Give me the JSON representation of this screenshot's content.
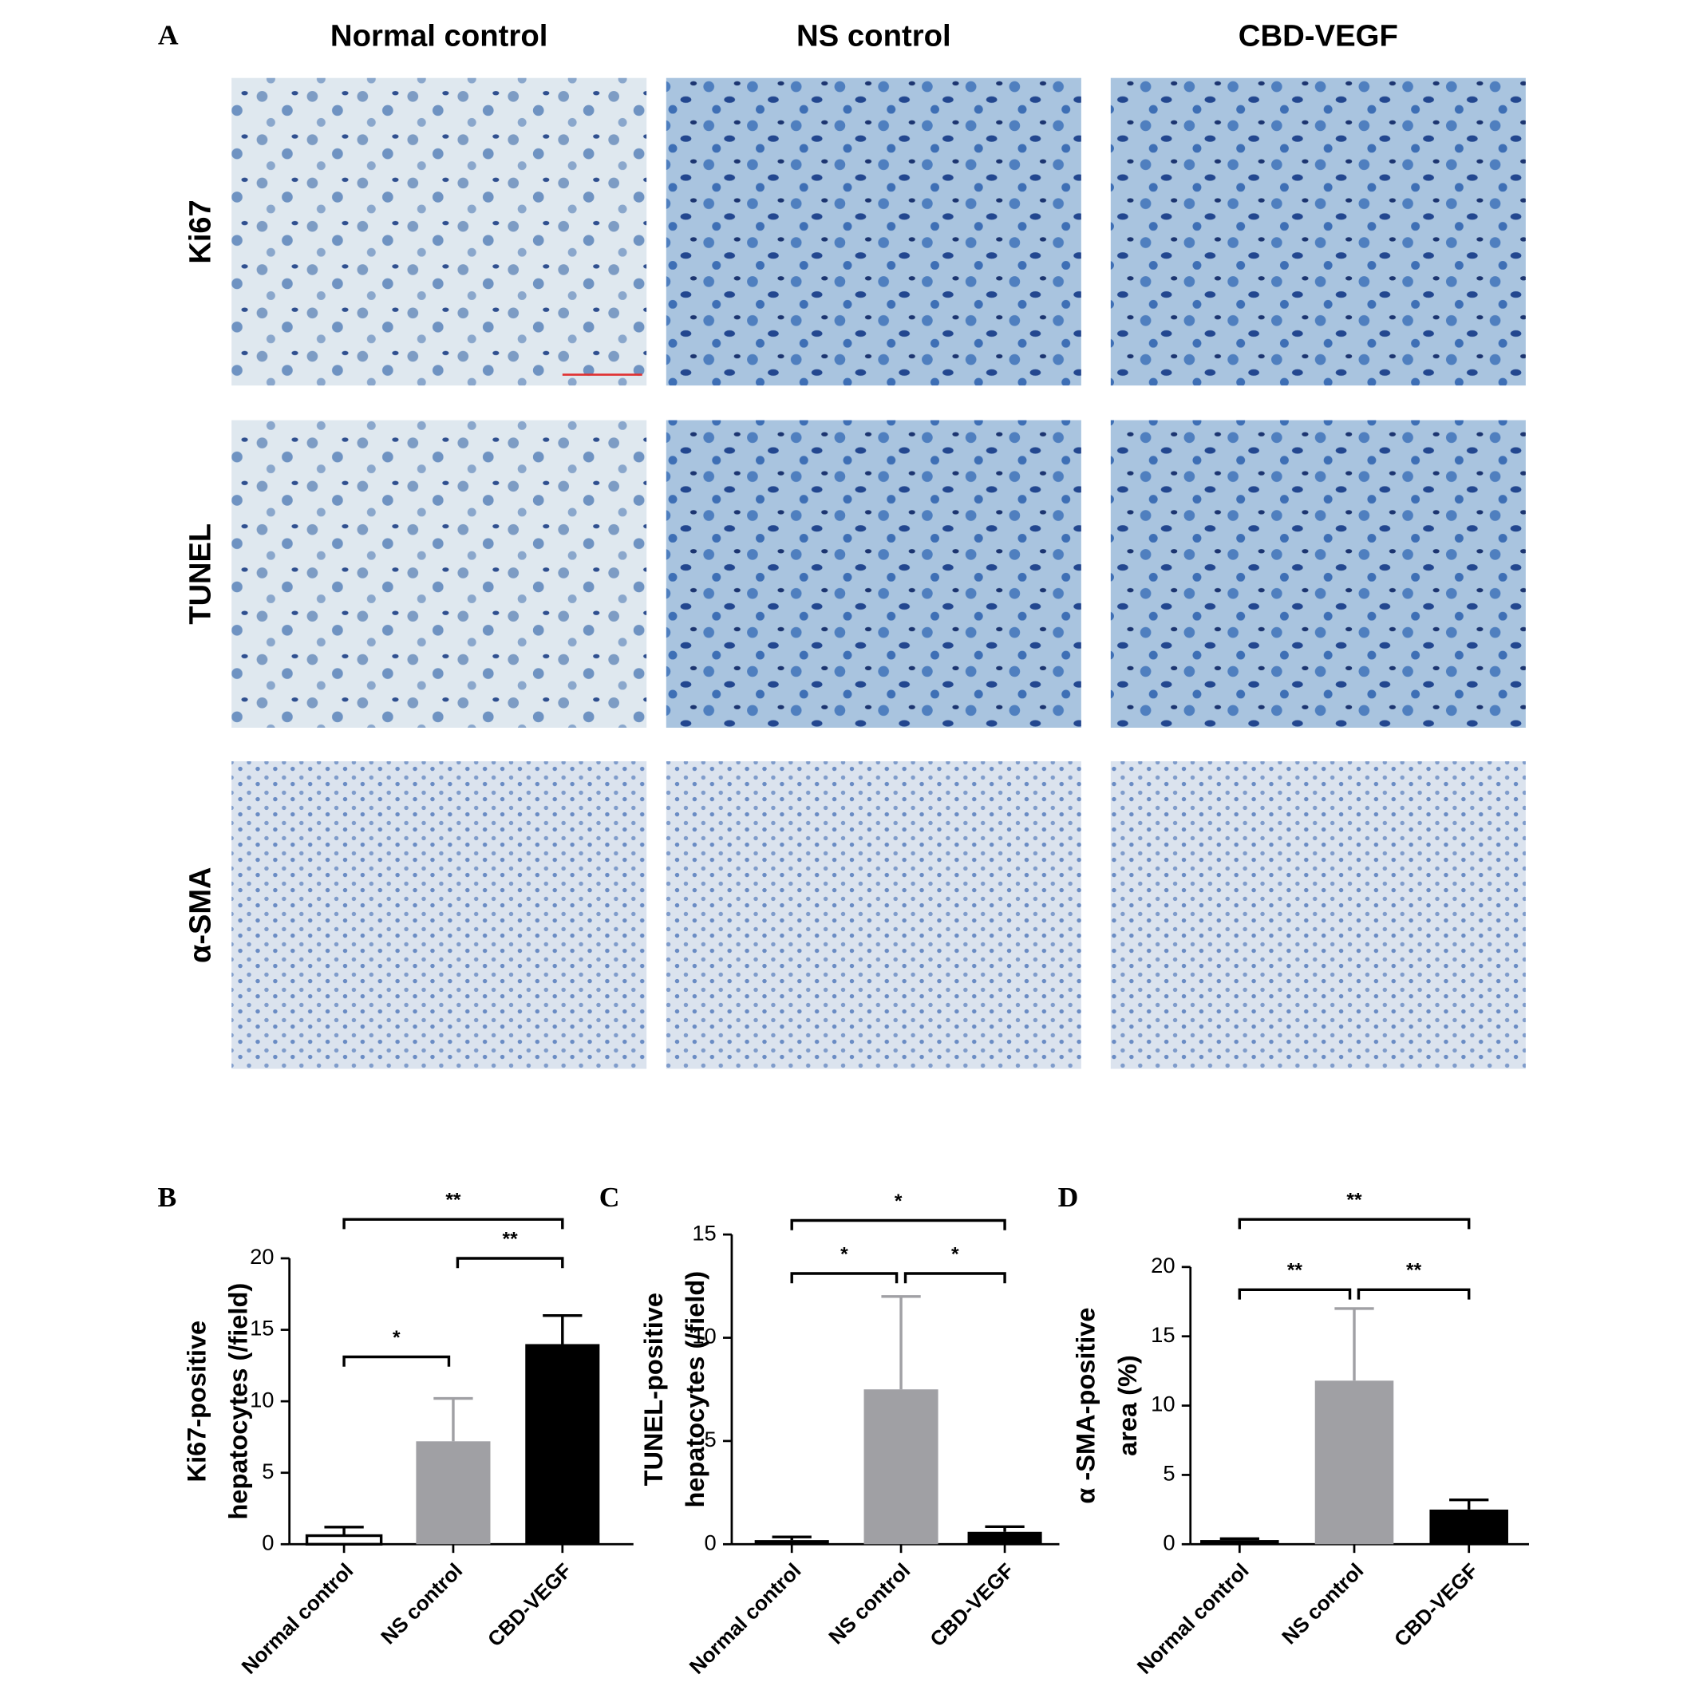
{
  "panel_a": {
    "label": "A",
    "columns": [
      "Normal control",
      "NS control",
      "CBD-VEGF"
    ],
    "rows": [
      "Ki67",
      "TUNEL",
      "α-SMA"
    ]
  },
  "chart_data": [
    {
      "type": "bar",
      "panel": "B",
      "ylabel": [
        "Ki67-positive",
        "hepatocytes (/field)"
      ],
      "categories": [
        "Normal control",
        "NS control",
        "CBD-VEGF"
      ],
      "values": [
        0.6,
        7.2,
        14
      ],
      "errors": [
        0.6,
        3,
        2
      ],
      "colors": [
        "#ffffff",
        "#a0a0a4",
        "#000000"
      ],
      "ylim": [
        0,
        20
      ],
      "yticks": [
        0,
        5,
        10,
        15,
        20
      ],
      "annotations": [
        "**",
        "**",
        "*"
      ]
    },
    {
      "type": "bar",
      "panel": "C",
      "ylabel": [
        "TUNEL-positive",
        "hepatocytes (/field)"
      ],
      "categories": [
        "Normal control",
        "NS control",
        "CBD-VEGF"
      ],
      "values": [
        0.2,
        7.5,
        0.6
      ],
      "errors": [
        0.15,
        4.5,
        0.25
      ],
      "colors": [
        "#000000",
        "#a0a0a4",
        "#000000"
      ],
      "ylim": [
        0,
        15
      ],
      "yticks": [
        0,
        5,
        10,
        15
      ],
      "annotations": [
        "*",
        "*",
        "*"
      ]
    },
    {
      "type": "bar",
      "panel": "D",
      "ylabel": [
        "α -SMA-positive",
        "area (%)"
      ],
      "categories": [
        "Normal control",
        "NS control",
        "CBD-VEGF"
      ],
      "values": [
        0.3,
        11.8,
        2.5
      ],
      "errors": [
        0.1,
        5.2,
        0.7
      ],
      "colors": [
        "#000000",
        "#a0a0a4",
        "#000000"
      ],
      "ylim": [
        0,
        20
      ],
      "yticks": [
        0,
        5,
        10,
        15,
        20
      ],
      "annotations": [
        "**",
        "**",
        "**"
      ]
    }
  ]
}
